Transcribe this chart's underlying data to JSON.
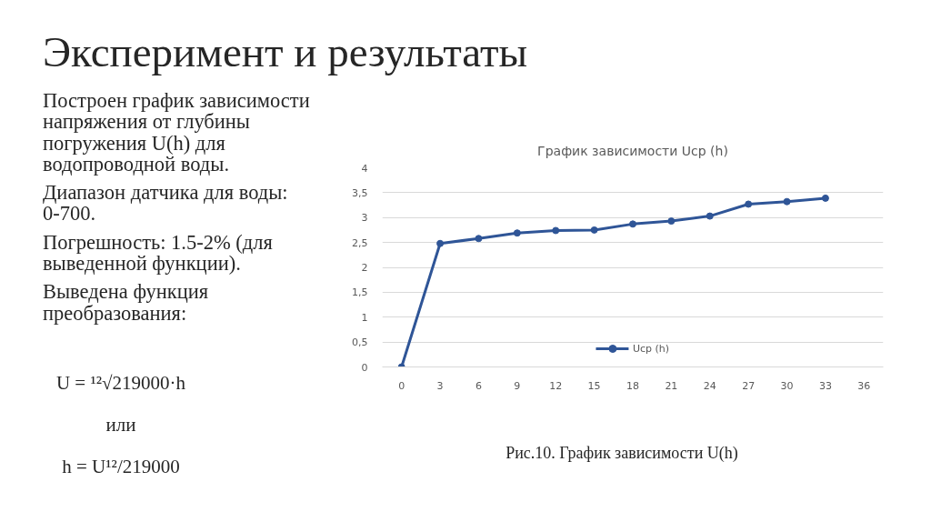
{
  "chart_data": {
    "type": "line",
    "title": "График зависимости Uср (h)",
    "x": [
      0,
      3,
      6,
      9,
      12,
      15,
      18,
      21,
      24,
      27,
      30,
      33
    ],
    "series": [
      {
        "name": "Uср (h)",
        "color": "#2f5597",
        "values": [
          0,
          2.48,
          2.58,
          2.69,
          2.74,
          2.75,
          2.87,
          2.93,
          3.03,
          3.27,
          3.32,
          3.39
        ]
      }
    ],
    "xlim": [
      -1.5,
      37.5
    ],
    "xticks": [
      0,
      3,
      6,
      9,
      12,
      15,
      18,
      21,
      24,
      27,
      30,
      33,
      36
    ],
    "ylim": [
      0,
      4
    ],
    "yticks": [
      0,
      {
        "value": 0.5,
        "label": "0,5"
      },
      1,
      {
        "value": 1.5,
        "label": "1,5"
      },
      2,
      {
        "value": 2.5,
        "label": "2,5"
      },
      3,
      {
        "value": 3.5,
        "label": "3,5"
      },
      4
    ],
    "grid": "y",
    "legend": "bottom",
    "marker": "circle",
    "line_style": "solid",
    "annotations": [
      "Эксперимент и результаты",
      "Построен график зависимости напряжения от глубины погружения U(h) для водопроводной воды.",
      "Диапазон датчика для воды: 0-700.",
      "Погрешность: 1.5-2% (для выведенной функции).",
      "Выведена функция преобразования:",
      "U = ¹²√219000·h",
      "или",
      "h = U¹²/219000",
      "Рис.10. График зависимости U(h)"
    ]
  }
}
